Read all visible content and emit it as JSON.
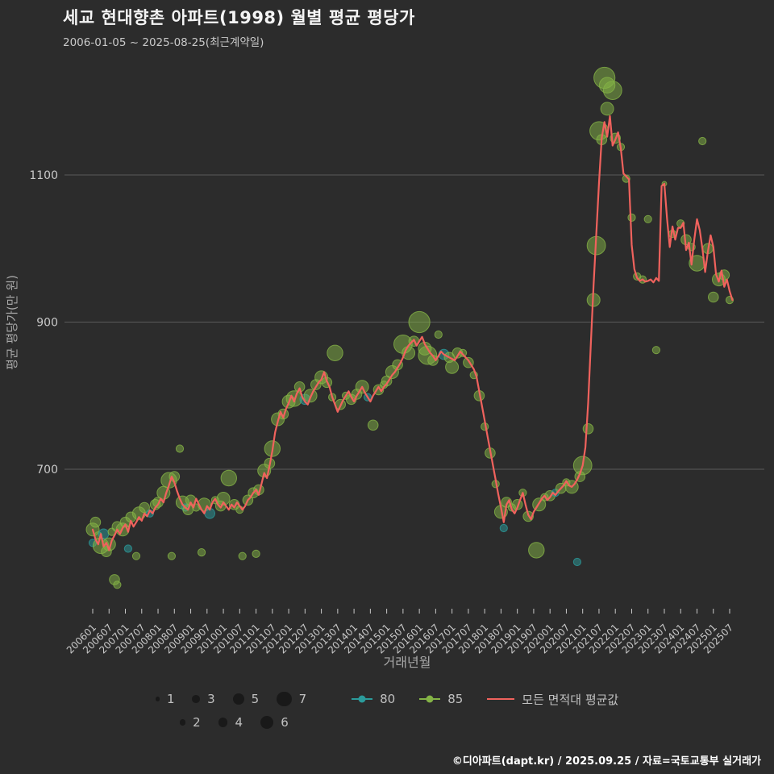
{
  "header": {
    "title": "세교 현대향촌 아파트(1998) 월별 평균 평당가",
    "subtitle": "2006-01-05 ~ 2025-08-25(최근계약일)"
  },
  "footer": {
    "credit": "©디아파트(dapt.kr) / 2025.09.25 / 자료=국토교통부 실거래가"
  },
  "colors": {
    "background": "#2c2c2c",
    "grid": "#5a5a5a",
    "tick": "#c9c9c9",
    "axis": "#a8a8a8",
    "line": "#f0625d",
    "group_80": "#2b9b9b",
    "group_85": "#84b346",
    "legend_dot": "#191919"
  },
  "legend": {
    "size_rows": [
      [
        1,
        3,
        5,
        7
      ],
      [
        2,
        4,
        6
      ]
    ],
    "series": [
      {
        "label": "80",
        "color": "#2b9b9b",
        "type": "marker"
      },
      {
        "label": "85",
        "color": "#84b346",
        "type": "marker"
      },
      {
        "label": "모든 면적대 평균값",
        "color": "#f0625d",
        "type": "line"
      }
    ]
  },
  "chart_data": {
    "type": "scatter",
    "title": "세교 현대향촌 아파트(1998) 월별 평균 평당가",
    "xlabel": "거래년월",
    "ylabel": "평균 평당가(만 원)",
    "x_range": [
      "2006-01",
      "2025-08"
    ],
    "ylim": [
      506,
      1244
    ],
    "y_ticks": [
      700,
      900,
      1100
    ],
    "grid": "horizontal",
    "legend_position": "bottom",
    "x_ticks": [
      "200601",
      "200607",
      "200701",
      "200707",
      "200801",
      "200807",
      "200901",
      "200907",
      "201001",
      "201007",
      "201101",
      "201107",
      "201201",
      "201207",
      "201301",
      "201307",
      "201401",
      "201407",
      "201501",
      "201507",
      "201601",
      "201607",
      "201701",
      "201707",
      "201801",
      "201807",
      "201901",
      "201907",
      "202001",
      "202007",
      "202101",
      "202107",
      "202201",
      "202207",
      "202301",
      "202307",
      "202401",
      "202407",
      "202501",
      "202507"
    ],
    "groups": {
      "80": "#2b9b9b",
      "85": "#84b346"
    },
    "line": {
      "name": "모든 면적대 평균값",
      "color": "#f0625d",
      "start": "2006-01",
      "values": [
        618,
        605,
        598,
        612,
        595,
        600,
        590,
        603,
        610,
        618,
        612,
        620,
        625,
        615,
        630,
        622,
        628,
        635,
        630,
        640,
        636,
        644,
        640,
        648,
        652,
        660,
        655,
        668,
        678,
        690,
        682,
        670,
        660,
        652,
        648,
        645,
        655,
        648,
        660,
        652,
        645,
        640,
        650,
        645,
        655,
        660,
        652,
        648,
        655,
        650,
        645,
        652,
        648,
        655,
        650,
        645,
        650,
        658,
        662,
        668,
        672,
        665,
        680,
        695,
        688,
        705,
        725,
        750,
        765,
        778,
        770,
        782,
        790,
        800,
        792,
        803,
        810,
        798,
        792,
        788,
        798,
        806,
        812,
        818,
        822,
        832,
        820,
        812,
        798,
        788,
        778,
        786,
        794,
        800,
        806,
        798,
        792,
        800,
        806,
        812,
        804,
        798,
        792,
        800,
        806,
        812,
        806,
        812,
        816,
        822,
        828,
        832,
        838,
        844,
        852,
        862,
        868,
        872,
        876,
        868,
        874,
        880,
        870,
        864,
        858,
        854,
        848,
        854,
        860,
        856,
        854,
        852,
        850,
        848,
        854,
        860,
        856,
        852,
        848,
        842,
        836,
        826,
        806,
        786,
        766,
        746,
        726,
        706,
        686,
        666,
        648,
        628,
        652,
        658,
        645,
        640,
        648,
        658,
        668,
        652,
        638,
        632,
        642,
        648,
        654,
        660,
        664,
        658,
        662,
        668,
        665,
        670,
        674,
        678,
        684,
        678,
        676,
        680,
        686,
        694,
        705,
        730,
        790,
        870,
        950,
        1020,
        1090,
        1150,
        1172,
        1152,
        1180,
        1140,
        1148,
        1158,
        1136,
        1102,
        1098,
        1094,
        1005,
        972,
        960,
        956,
        958,
        955,
        956,
        958,
        954,
        960,
        956,
        1085,
        1088,
        1040,
        1002,
        1030,
        1012,
        1028,
        1028,
        1035,
        998,
        1008,
        978,
        1012,
        1040,
        1025,
        1000,
        968,
        996,
        1018,
        1002,
        965,
        955,
        970,
        948,
        958,
        942,
        930
      ]
    },
    "bubbles": [
      [
        "2006-01",
        618,
        4,
        "85"
      ],
      [
        "2006-01",
        600,
        2,
        "80"
      ],
      [
        "2006-02",
        628,
        3,
        "85"
      ],
      [
        "2006-03",
        610,
        2,
        "85"
      ],
      [
        "2006-04",
        596,
        5,
        "85"
      ],
      [
        "2006-05",
        612,
        3,
        "80"
      ],
      [
        "2006-06",
        588,
        3,
        "85"
      ],
      [
        "2006-07",
        598,
        4,
        "85"
      ],
      [
        "2006-08",
        615,
        2,
        "85"
      ],
      [
        "2006-09",
        550,
        3,
        "85"
      ],
      [
        "2006-10",
        543,
        2,
        "85"
      ],
      [
        "2006-10",
        622,
        3,
        "85"
      ],
      [
        "2006-12",
        618,
        4,
        "85"
      ],
      [
        "2007-01",
        628,
        3,
        "85"
      ],
      [
        "2007-02",
        592,
        2,
        "80"
      ],
      [
        "2007-03",
        635,
        3,
        "85"
      ],
      [
        "2007-05",
        582,
        2,
        "85"
      ],
      [
        "2007-06",
        640,
        4,
        "85"
      ],
      [
        "2007-08",
        648,
        3,
        "85"
      ],
      [
        "2007-10",
        640,
        2,
        "80"
      ],
      [
        "2007-12",
        652,
        3,
        "85"
      ],
      [
        "2008-01",
        655,
        3,
        "85"
      ],
      [
        "2008-03",
        668,
        4,
        "85"
      ],
      [
        "2008-05",
        685,
        5,
        "85"
      ],
      [
        "2008-06",
        582,
        2,
        "85"
      ],
      [
        "2008-07",
        690,
        3,
        "85"
      ],
      [
        "2008-09",
        728,
        2,
        "85"
      ],
      [
        "2008-10",
        655,
        4,
        "85"
      ],
      [
        "2008-11",
        648,
        2,
        "80"
      ],
      [
        "2008-12",
        645,
        3,
        "85"
      ],
      [
        "2009-01",
        658,
        3,
        "85"
      ],
      [
        "2009-03",
        648,
        2,
        "85"
      ],
      [
        "2009-05",
        587,
        2,
        "85"
      ],
      [
        "2009-06",
        652,
        4,
        "85"
      ],
      [
        "2009-08",
        640,
        3,
        "80"
      ],
      [
        "2009-10",
        658,
        2,
        "85"
      ],
      [
        "2009-12",
        650,
        3,
        "85"
      ],
      [
        "2010-01",
        660,
        4,
        "85"
      ],
      [
        "2010-03",
        688,
        5,
        "85"
      ],
      [
        "2010-05",
        652,
        3,
        "85"
      ],
      [
        "2010-07",
        645,
        2,
        "85"
      ],
      [
        "2010-08",
        582,
        2,
        "85"
      ],
      [
        "2010-10",
        658,
        3,
        "85"
      ],
      [
        "2010-12",
        668,
        3,
        "85"
      ],
      [
        "2011-01",
        585,
        2,
        "85"
      ],
      [
        "2011-02",
        672,
        3,
        "85"
      ],
      [
        "2011-04",
        698,
        4,
        "85"
      ],
      [
        "2011-06",
        708,
        3,
        "85"
      ],
      [
        "2011-07",
        728,
        5,
        "85"
      ],
      [
        "2011-09",
        768,
        4,
        "85"
      ],
      [
        "2011-11",
        775,
        3,
        "85"
      ],
      [
        "2012-01",
        792,
        4,
        "85"
      ],
      [
        "2012-03",
        796,
        5,
        "85"
      ],
      [
        "2012-05",
        812,
        3,
        "85"
      ],
      [
        "2012-07",
        795,
        3,
        "80"
      ],
      [
        "2012-09",
        800,
        4,
        "85"
      ],
      [
        "2012-11",
        815,
        3,
        "85"
      ],
      [
        "2013-01",
        825,
        4,
        "85"
      ],
      [
        "2013-03",
        818,
        3,
        "85"
      ],
      [
        "2013-05",
        798,
        2,
        "85"
      ],
      [
        "2013-06",
        858,
        5,
        "85"
      ],
      [
        "2013-08",
        788,
        3,
        "85"
      ],
      [
        "2013-10",
        800,
        2,
        "85"
      ],
      [
        "2013-12",
        795,
        3,
        "85"
      ],
      [
        "2014-02",
        802,
        3,
        "85"
      ],
      [
        "2014-04",
        812,
        4,
        "85"
      ],
      [
        "2014-06",
        798,
        2,
        "80"
      ],
      [
        "2014-08",
        760,
        3,
        "85"
      ],
      [
        "2014-10",
        808,
        3,
        "85"
      ],
      [
        "2014-12",
        815,
        2,
        "85"
      ],
      [
        "2015-01",
        820,
        3,
        "85"
      ],
      [
        "2015-03",
        832,
        4,
        "85"
      ],
      [
        "2015-05",
        842,
        3,
        "85"
      ],
      [
        "2015-07",
        870,
        6,
        "85"
      ],
      [
        "2015-09",
        858,
        4,
        "85"
      ],
      [
        "2015-11",
        874,
        3,
        "85"
      ],
      [
        "2016-01",
        900,
        7,
        "85"
      ],
      [
        "2016-03",
        864,
        4,
        "85"
      ],
      [
        "2016-04",
        855,
        6,
        "85"
      ],
      [
        "2016-06",
        848,
        3,
        "85"
      ],
      [
        "2016-08",
        883,
        2,
        "85"
      ],
      [
        "2016-10",
        856,
        3,
        "80"
      ],
      [
        "2016-12",
        852,
        3,
        "85"
      ],
      [
        "2017-01",
        839,
        4,
        "85"
      ],
      [
        "2017-03",
        858,
        3,
        "85"
      ],
      [
        "2017-05",
        858,
        2,
        "85"
      ],
      [
        "2017-07",
        845,
        3,
        "85"
      ],
      [
        "2017-09",
        828,
        2,
        "85"
      ],
      [
        "2017-11",
        800,
        3,
        "85"
      ],
      [
        "2018-01",
        758,
        2,
        "85"
      ],
      [
        "2018-03",
        722,
        3,
        "85"
      ],
      [
        "2018-05",
        680,
        2,
        "85"
      ],
      [
        "2018-07",
        642,
        4,
        "85"
      ],
      [
        "2018-08",
        620,
        2,
        "80"
      ],
      [
        "2018-09",
        655,
        3,
        "85"
      ],
      [
        "2018-11",
        648,
        2,
        "85"
      ],
      [
        "2019-01",
        652,
        3,
        "85"
      ],
      [
        "2019-03",
        668,
        2,
        "85"
      ],
      [
        "2019-05",
        636,
        3,
        "85"
      ],
      [
        "2019-08",
        590,
        5,
        "85"
      ],
      [
        "2019-09",
        652,
        4,
        "85"
      ],
      [
        "2019-11",
        662,
        2,
        "85"
      ],
      [
        "2020-01",
        664,
        3,
        "85"
      ],
      [
        "2020-03",
        668,
        2,
        "80"
      ],
      [
        "2020-05",
        674,
        3,
        "85"
      ],
      [
        "2020-07",
        682,
        2,
        "85"
      ],
      [
        "2020-09",
        676,
        4,
        "85"
      ],
      [
        "2020-11",
        574,
        2,
        "80"
      ],
      [
        "2020-12",
        690,
        3,
        "85"
      ],
      [
        "2021-01",
        705,
        6,
        "85"
      ],
      [
        "2021-03",
        755,
        3,
        "85"
      ],
      [
        "2021-05",
        930,
        4,
        "85"
      ],
      [
        "2021-06",
        1004,
        6,
        "85"
      ],
      [
        "2021-07",
        1160,
        6,
        "85"
      ],
      [
        "2021-08",
        1148,
        3,
        "85"
      ],
      [
        "2021-09",
        1232,
        7,
        "85"
      ],
      [
        "2021-10",
        1222,
        5,
        "85"
      ],
      [
        "2021-10",
        1190,
        4,
        "85"
      ],
      [
        "2021-12",
        1215,
        6,
        "85"
      ],
      [
        "2022-01",
        1150,
        3,
        "85"
      ],
      [
        "2022-03",
        1138,
        2,
        "85"
      ],
      [
        "2022-05",
        1095,
        2,
        "85"
      ],
      [
        "2022-07",
        1042,
        2,
        "85"
      ],
      [
        "2022-09",
        962,
        2,
        "85"
      ],
      [
        "2022-11",
        958,
        2,
        "85"
      ],
      [
        "2023-01",
        1040,
        2,
        "85"
      ],
      [
        "2023-04",
        862,
        2,
        "85"
      ],
      [
        "2023-07",
        1088,
        1,
        "85"
      ],
      [
        "2023-10",
        1020,
        2,
        "85"
      ],
      [
        "2024-01",
        1034,
        2,
        "85"
      ],
      [
        "2024-03",
        1012,
        3,
        "85"
      ],
      [
        "2024-05",
        1002,
        2,
        "85"
      ],
      [
        "2024-07",
        980,
        5,
        "85"
      ],
      [
        "2024-09",
        1146,
        2,
        "85"
      ],
      [
        "2024-11",
        1000,
        3,
        "85"
      ],
      [
        "2025-01",
        934,
        3,
        "85"
      ],
      [
        "2025-03",
        958,
        4,
        "85"
      ],
      [
        "2025-05",
        964,
        3,
        "85"
      ],
      [
        "2025-07",
        930,
        2,
        "85"
      ]
    ]
  }
}
